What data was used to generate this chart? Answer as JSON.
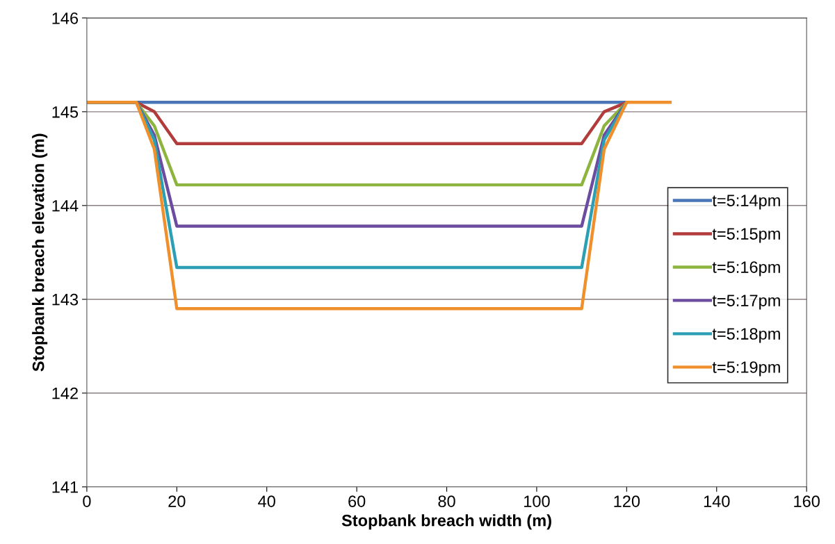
{
  "chart_data": {
    "type": "line",
    "xlabel": "Stopbank breach width (m)",
    "ylabel": "Stopbank breach elevation (m)",
    "xlim": [
      0,
      160
    ],
    "xticks": [
      0,
      20,
      40,
      60,
      80,
      100,
      120,
      140,
      160
    ],
    "ylim": [
      141,
      146
    ],
    "yticks": [
      141,
      142,
      143,
      144,
      145,
      146
    ],
    "grid": "y",
    "legend": "right",
    "marker": "none",
    "line_style": "solid",
    "series": [
      {
        "name": "t=5:14pm",
        "color": "#4a76b8",
        "x": [
          0,
          11,
          20,
          110,
          120
        ],
        "values": [
          145.1,
          145.1,
          145.1,
          145.1,
          145.1
        ]
      },
      {
        "name": "t=5:15pm",
        "color": "#b23c3c",
        "x": [
          0,
          11,
          15,
          20,
          110,
          115,
          120
        ],
        "values": [
          145.1,
          145.1,
          145.0,
          144.66,
          144.66,
          145.0,
          145.1
        ]
      },
      {
        "name": "t=5:16pm",
        "color": "#8db43e",
        "x": [
          0,
          11,
          15,
          20,
          110,
          115,
          120
        ],
        "values": [
          145.1,
          145.1,
          144.85,
          144.22,
          144.22,
          144.85,
          145.1
        ]
      },
      {
        "name": "t=5:17pm",
        "color": "#6b4c9e",
        "x": [
          0,
          11,
          15,
          20,
          110,
          115,
          120
        ],
        "values": [
          145.1,
          145.1,
          144.75,
          143.78,
          143.78,
          144.75,
          145.1
        ]
      },
      {
        "name": "t=5:18pm",
        "color": "#2d9fb5",
        "x": [
          0,
          11,
          15,
          20,
          110,
          115,
          120
        ],
        "values": [
          145.1,
          145.1,
          144.7,
          143.34,
          143.34,
          144.7,
          145.1
        ]
      },
      {
        "name": "t=5:19pm",
        "color": "#f0902c",
        "x": [
          0,
          11,
          15,
          20,
          110,
          115,
          120,
          130
        ],
        "values": [
          145.1,
          145.1,
          144.6,
          142.9,
          142.9,
          144.6,
          145.1,
          145.1
        ]
      }
    ]
  }
}
